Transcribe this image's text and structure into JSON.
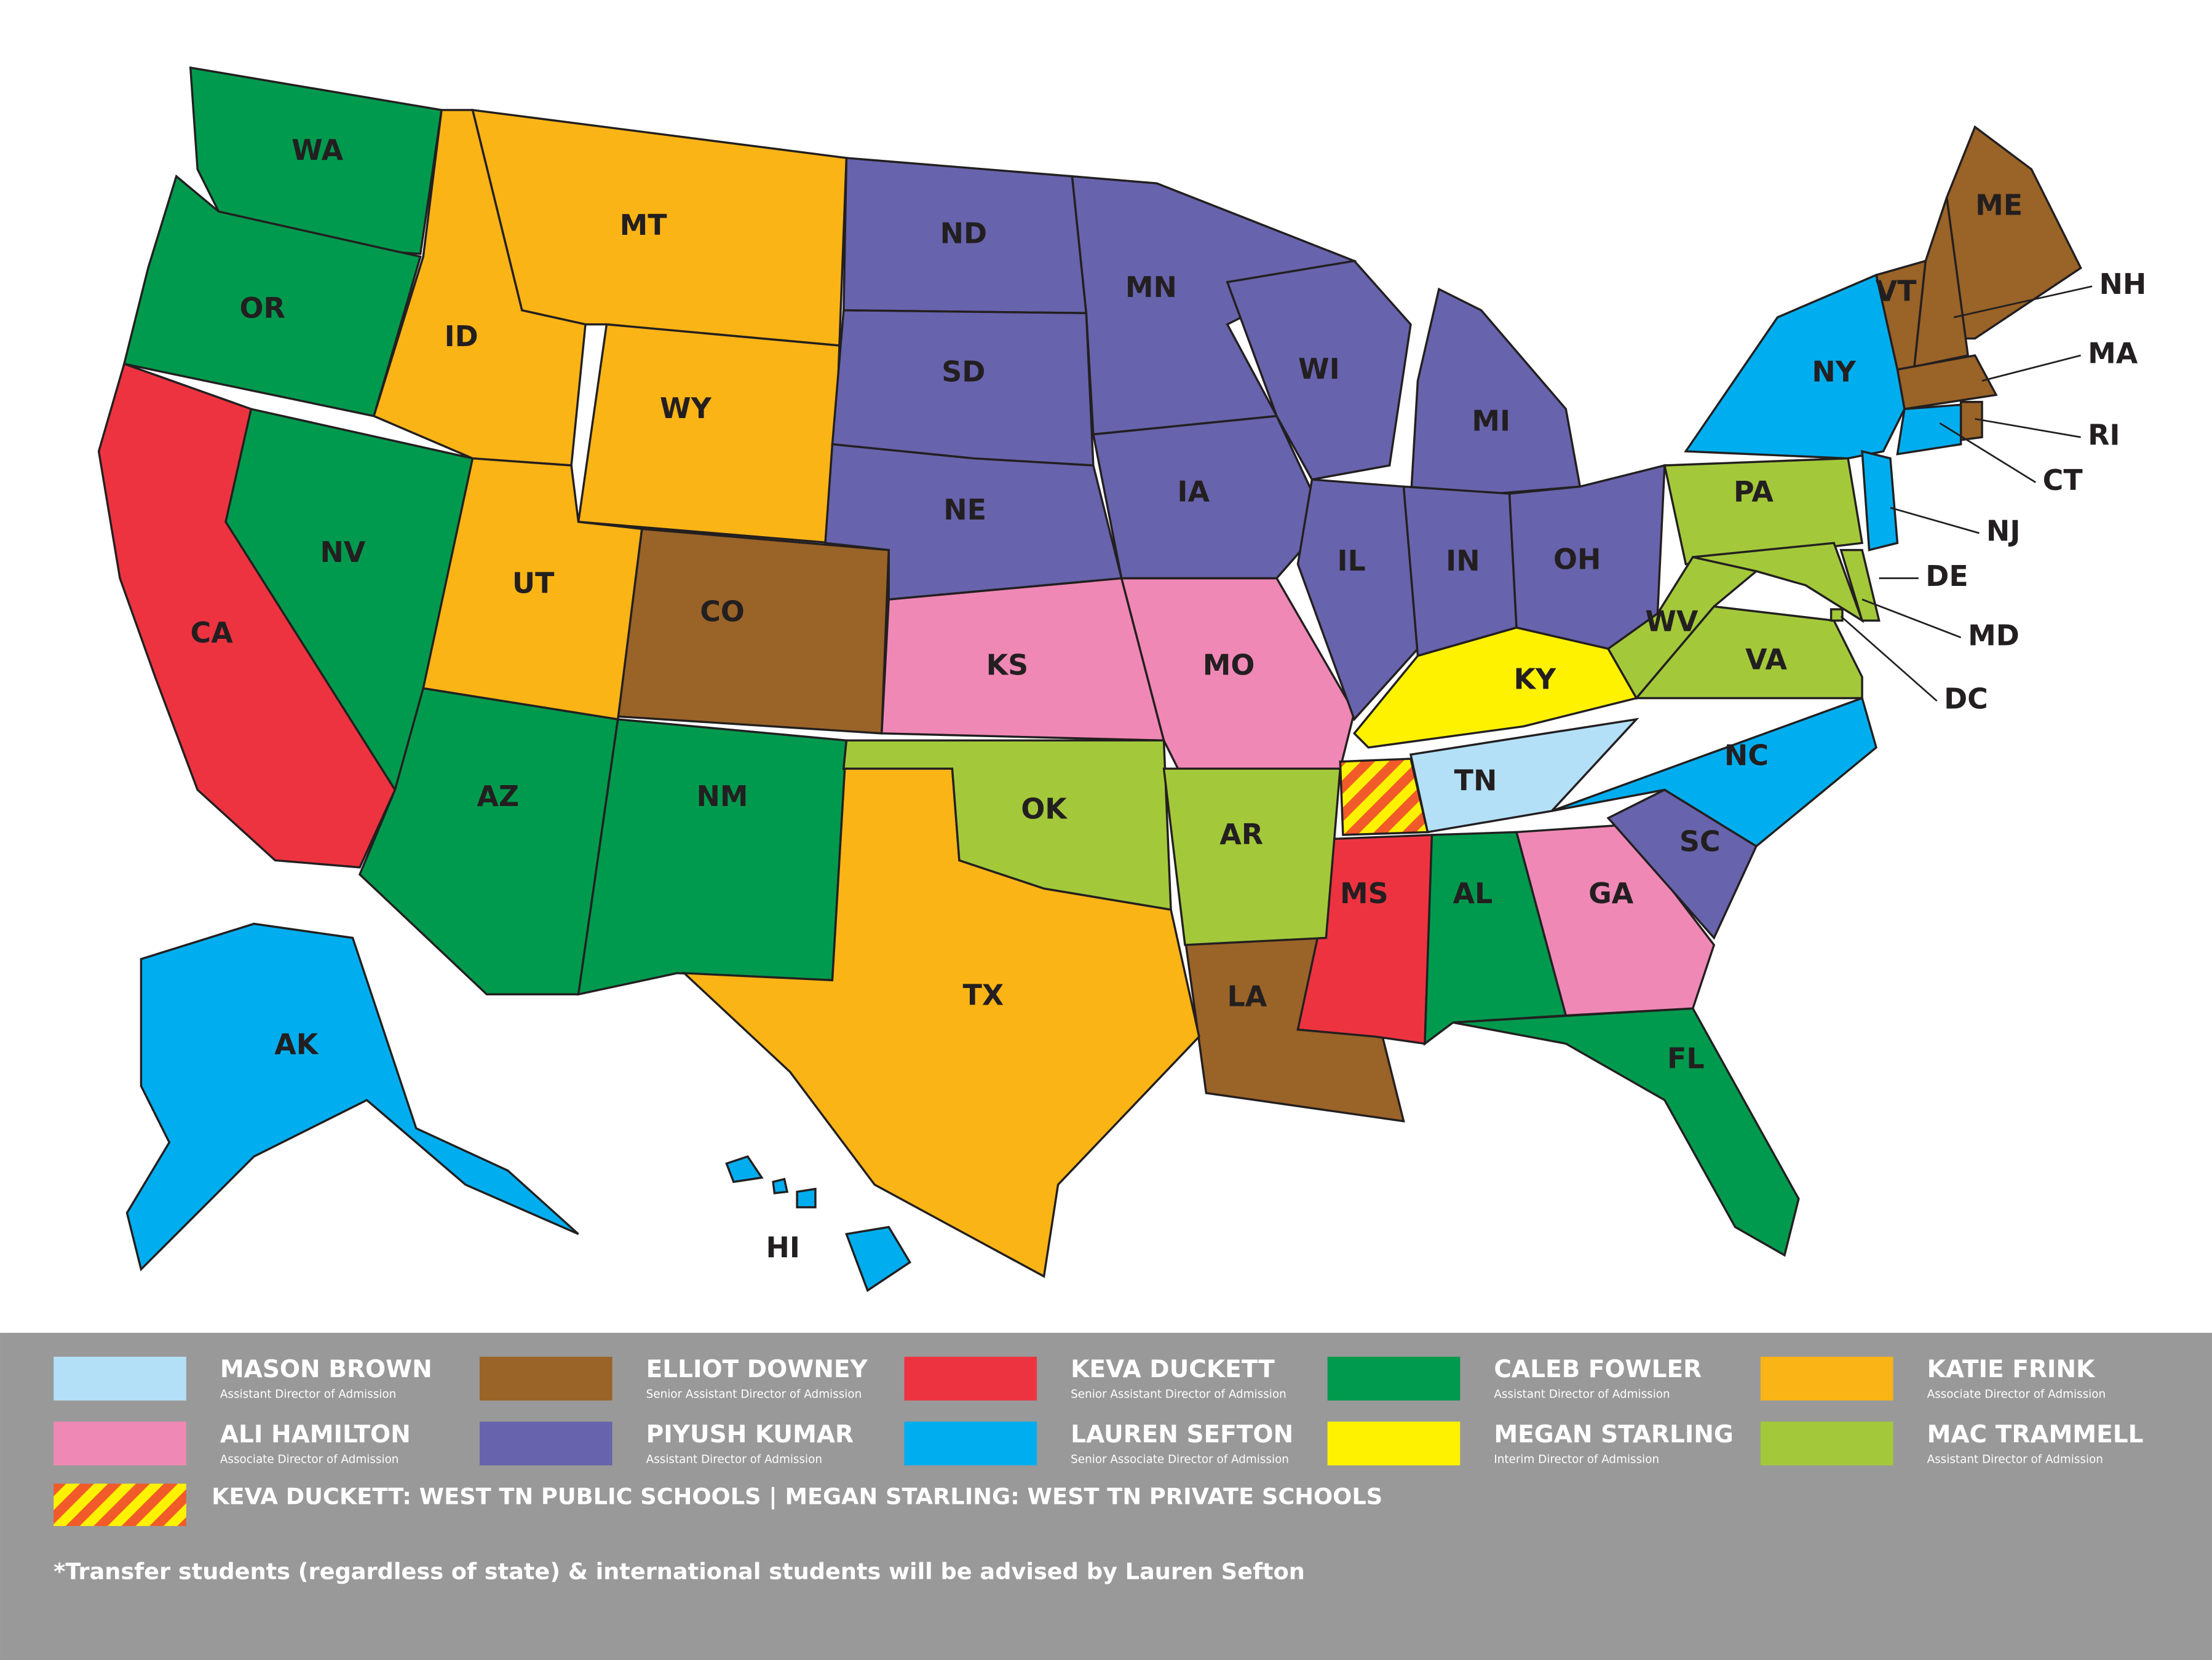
{
  "legend": [
    {
      "name": "MASON BROWN",
      "title": "Assistant Director of Admission",
      "color": "#b3e0f7",
      "states": [
        "TN"
      ]
    },
    {
      "name": "ELLIOT DOWNEY",
      "title": "Senior Assistant Director of Admission",
      "color": "#9a6327",
      "states": [
        "CO",
        "LA",
        "ME",
        "VT",
        "NH",
        "MA",
        "RI"
      ]
    },
    {
      "name": "KEVA DUCKETT",
      "title": "Senior Assistant Director of Admission",
      "color": "#ee3340",
      "states": [
        "CA",
        "MS"
      ]
    },
    {
      "name": "CALEB FOWLER",
      "title": "Assistant Director of Admission",
      "color": "#009a4e",
      "states": [
        "WA",
        "OR",
        "NV",
        "AZ",
        "NM",
        "AL",
        "FL"
      ]
    },
    {
      "name": "KATIE FRINK",
      "title": "Associate Director of Admission",
      "color": "#fbb416",
      "states": [
        "MT",
        "ID",
        "WY",
        "UT",
        "TX"
      ]
    },
    {
      "name": "ALI HAMILTON",
      "title": "Associate Director of Admission",
      "color": "#f088b6",
      "states": [
        "KS",
        "MO",
        "GA"
      ]
    },
    {
      "name": "PIYUSH KUMAR",
      "title": "Assistant Director of Admission",
      "color": "#6763ac",
      "states": [
        "ND",
        "SD",
        "NE",
        "MN",
        "IA",
        "WI",
        "MI",
        "IL",
        "IN",
        "OH",
        "SC"
      ]
    },
    {
      "name": "LAUREN SEFTON",
      "title": "Senior Associate Director of Admission",
      "color": "#00aeef",
      "states": [
        "NY",
        "NJ",
        "CT",
        "NC",
        "AK",
        "HI"
      ]
    },
    {
      "name": "MEGAN STARLING",
      "title": "Interim Director of Admission",
      "color": "#fff200",
      "states": [
        "KY"
      ]
    },
    {
      "name": "MAC TRAMMELL",
      "title": "Assistant Director of Admission",
      "color": "#a3c93a",
      "states": [
        "PA",
        "WV",
        "VA",
        "MD",
        "DE",
        "DC",
        "OK",
        "AR"
      ]
    }
  ],
  "west_tn_note": "KEVA DUCKETT: WEST TN PUBLIC SCHOOLS | MEGAN STARLING: WEST TN PRIVATE SCHOOLS",
  "footnote": "*Transfer students (regardless of state) & international students will be advised by Lauren Sefton"
}
